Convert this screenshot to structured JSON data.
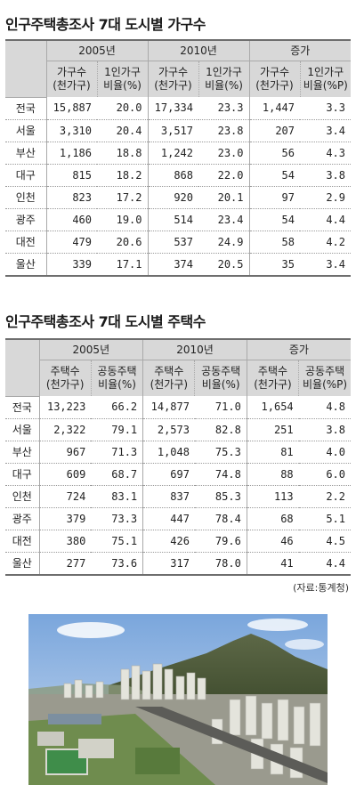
{
  "table1": {
    "title": "인구주택총조사 7대 도시별 가구수",
    "groups": [
      "2005년",
      "2010년",
      "증가"
    ],
    "subheaders": [
      [
        "가구수",
        "(천가구)"
      ],
      [
        "1인가구",
        "비율(%)"
      ],
      [
        "가구수",
        "(천가구)"
      ],
      [
        "1인가구",
        "비율(%)"
      ],
      [
        "가구수",
        "(천가구)"
      ],
      [
        "1인가구",
        "비율(%P)"
      ]
    ],
    "rows": [
      {
        "region": "전국",
        "values": [
          "15,887",
          "20.0",
          "17,334",
          "23.3",
          "1,447",
          "3.3"
        ]
      },
      {
        "region": "서울",
        "values": [
          "3,310",
          "20.4",
          "3,517",
          "23.8",
          "207",
          "3.4"
        ]
      },
      {
        "region": "부산",
        "values": [
          "1,186",
          "18.8",
          "1,242",
          "23.0",
          "56",
          "4.3"
        ]
      },
      {
        "region": "대구",
        "values": [
          "815",
          "18.2",
          "868",
          "22.0",
          "54",
          "3.8"
        ]
      },
      {
        "region": "인천",
        "values": [
          "823",
          "17.2",
          "920",
          "20.1",
          "97",
          "2.9"
        ]
      },
      {
        "region": "광주",
        "values": [
          "460",
          "19.0",
          "514",
          "23.4",
          "54",
          "4.4"
        ]
      },
      {
        "region": "대전",
        "values": [
          "479",
          "20.6",
          "537",
          "24.9",
          "58",
          "4.2"
        ]
      },
      {
        "region": "울산",
        "values": [
          "339",
          "17.1",
          "374",
          "20.5",
          "35",
          "3.4"
        ]
      }
    ]
  },
  "table2": {
    "title": "인구주택총조사 7대 도시별 주택수",
    "groups": [
      "2005년",
      "2010년",
      "증가"
    ],
    "subheaders": [
      [
        "주택수",
        "(천가구)"
      ],
      [
        "공동주택",
        "비율(%)"
      ],
      [
        "주택수",
        "(천가구)"
      ],
      [
        "공동주택",
        "비율(%)"
      ],
      [
        "주택수",
        "(천가구)"
      ],
      [
        "공동주택",
        "비율(%P)"
      ]
    ],
    "rows": [
      {
        "region": "전국",
        "values": [
          "13,223",
          "66.2",
          "14,877",
          "71.0",
          "1,654",
          "4.8"
        ]
      },
      {
        "region": "서울",
        "values": [
          "2,322",
          "79.1",
          "2,573",
          "82.8",
          "251",
          "3.8"
        ]
      },
      {
        "region": "부산",
        "values": [
          "967",
          "71.3",
          "1,048",
          "75.3",
          "81",
          "4.0"
        ]
      },
      {
        "region": "대구",
        "values": [
          "609",
          "68.7",
          "697",
          "74.8",
          "88",
          "6.0"
        ]
      },
      {
        "region": "인천",
        "values": [
          "724",
          "83.1",
          "837",
          "85.3",
          "113",
          "2.2"
        ]
      },
      {
        "region": "광주",
        "values": [
          "379",
          "73.3",
          "447",
          "78.4",
          "68",
          "5.1"
        ]
      },
      {
        "region": "대전",
        "values": [
          "380",
          "75.1",
          "426",
          "79.6",
          "46",
          "4.5"
        ]
      },
      {
        "region": "울산",
        "values": [
          "277",
          "73.6",
          "317",
          "78.0",
          "41",
          "4.4"
        ]
      }
    ]
  },
  "source": "(자료:통계청)",
  "photo": {
    "icon": "city-aerial-photo"
  },
  "colors": {
    "header_bg": "#d8d8d8",
    "rule": "#6e6e6e",
    "sky": "#8fb4e0",
    "mountain": "#4d5a3a"
  }
}
